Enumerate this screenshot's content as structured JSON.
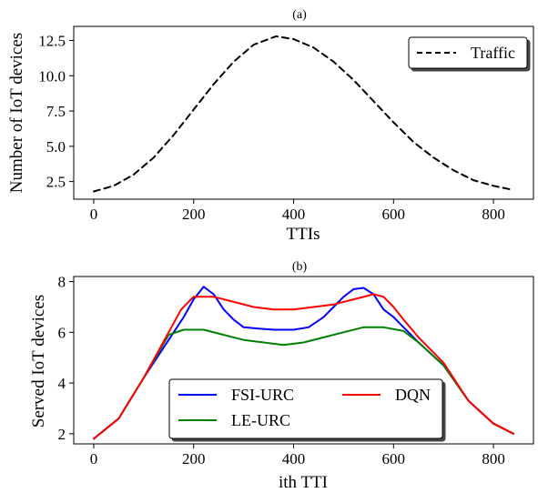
{
  "chart_data": [
    {
      "type": "line",
      "title": "(a)",
      "xlabel": "TTIs",
      "ylabel": "Number of IoT devices",
      "xlim": [
        -40,
        880
      ],
      "ylim": [
        1.25,
        13.5
      ],
      "xticks": [
        0,
        200,
        400,
        600,
        800
      ],
      "xtick_labels": [
        "0",
        "200",
        "400",
        "600",
        "800"
      ],
      "yticks": [
        2.5,
        5.0,
        7.5,
        10.0,
        12.5
      ],
      "ytick_labels": [
        "2.5",
        "5.0",
        "7.5",
        "10.0",
        "12.5"
      ],
      "grid": false,
      "legend_position": "top-right",
      "series": [
        {
          "name": "Traffic",
          "color": "#000000",
          "style": "dashed",
          "x": [
            0,
            40,
            80,
            120,
            160,
            200,
            240,
            280,
            320,
            365,
            400,
            440,
            480,
            520,
            560,
            600,
            640,
            680,
            720,
            760,
            800,
            840
          ],
          "y": [
            1.8,
            2.2,
            3.0,
            4.2,
            5.8,
            7.6,
            9.4,
            11.0,
            12.2,
            12.8,
            12.6,
            12.0,
            11.0,
            9.7,
            8.2,
            6.7,
            5.3,
            4.2,
            3.3,
            2.6,
            2.2,
            1.9
          ]
        }
      ]
    },
    {
      "type": "line",
      "title": "(b)",
      "xlabel": "ith TTI",
      "ylabel": "Served IoT devices",
      "xlim": [
        -40,
        880
      ],
      "ylim": [
        1.6,
        8.2
      ],
      "xticks": [
        0,
        200,
        400,
        600,
        800
      ],
      "xtick_labels": [
        "0",
        "200",
        "400",
        "600",
        "800"
      ],
      "yticks": [
        2,
        4,
        6,
        8
      ],
      "ytick_labels": [
        "2",
        "4",
        "6",
        "8"
      ],
      "grid": false,
      "legend_position": "lower-center",
      "series": [
        {
          "name": "FSI-URC",
          "color": "#0000ff",
          "x": [
            0,
            50,
            100,
            150,
            180,
            200,
            220,
            240,
            260,
            280,
            300,
            330,
            360,
            400,
            430,
            460,
            480,
            500,
            520,
            540,
            560,
            580,
            600,
            620,
            650,
            700,
            750,
            800,
            840
          ],
          "y": [
            1.8,
            2.6,
            4.2,
            5.7,
            6.6,
            7.3,
            7.8,
            7.5,
            6.9,
            6.5,
            6.2,
            6.15,
            6.1,
            6.1,
            6.2,
            6.6,
            7.0,
            7.4,
            7.7,
            7.75,
            7.5,
            6.9,
            6.6,
            6.2,
            5.6,
            4.7,
            3.3,
            2.4,
            2.0
          ]
        },
        {
          "name": "LE-URC",
          "color": "#008000",
          "x": [
            0,
            50,
            100,
            150,
            180,
            220,
            260,
            300,
            340,
            380,
            420,
            460,
            500,
            540,
            580,
            620,
            650,
            700,
            750,
            800,
            840
          ],
          "y": [
            1.8,
            2.6,
            4.2,
            5.9,
            6.1,
            6.1,
            5.9,
            5.7,
            5.6,
            5.5,
            5.6,
            5.8,
            6.0,
            6.2,
            6.2,
            6.05,
            5.6,
            4.7,
            3.3,
            2.4,
            2.0
          ]
        },
        {
          "name": "DQN",
          "color": "#ff0000",
          "x": [
            0,
            50,
            100,
            150,
            175,
            200,
            240,
            280,
            320,
            360,
            400,
            440,
            480,
            520,
            560,
            580,
            600,
            620,
            650,
            700,
            750,
            800,
            840
          ],
          "y": [
            1.8,
            2.6,
            4.2,
            6.0,
            6.9,
            7.4,
            7.4,
            7.2,
            7.0,
            6.9,
            6.9,
            7.0,
            7.1,
            7.3,
            7.5,
            7.4,
            7.0,
            6.5,
            5.8,
            4.8,
            3.3,
            2.4,
            2.0
          ]
        }
      ]
    }
  ]
}
